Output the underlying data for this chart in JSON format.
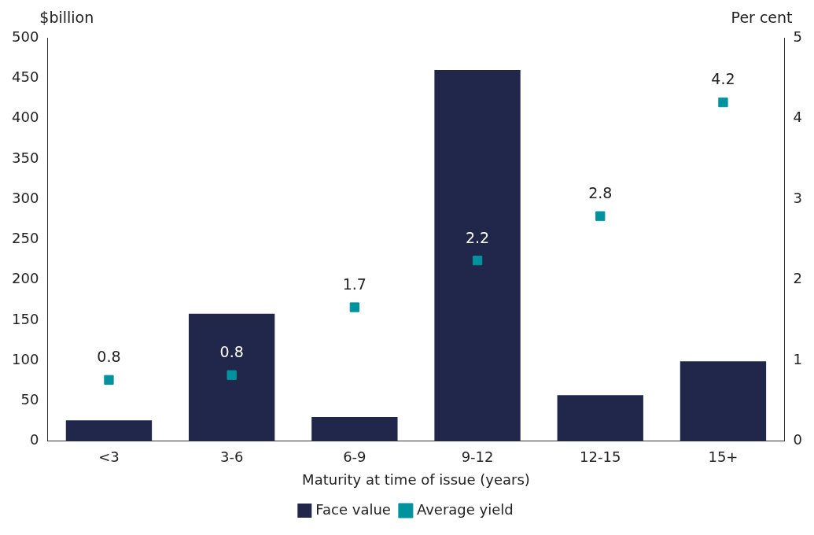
{
  "chart_data": {
    "type": "bar",
    "categories": [
      "<3",
      "3-6",
      "6-9",
      "9-12",
      "12-15",
      "15+"
    ],
    "series": [
      {
        "name": "Face value",
        "color": "#20274a",
        "values": [
          26,
          158,
          30,
          460,
          57,
          99
        ]
      },
      {
        "name": "Average yield",
        "type": "scatter",
        "axis": "y2",
        "color": "#00939e",
        "values": [
          0.76,
          0.82,
          1.66,
          2.24,
          2.79,
          4.2
        ],
        "value_labels": [
          "0.8",
          "0.8",
          "1.7",
          "2.2",
          "2.8",
          "4.2"
        ]
      }
    ],
    "xlabel": "Maturity at time of issue (years)",
    "ylabel": "$billion",
    "y2label": "Per cent",
    "ylim": [
      0,
      500
    ],
    "yticks": [
      0,
      50,
      100,
      150,
      200,
      250,
      300,
      350,
      400,
      450,
      500
    ],
    "y2lim": [
      0,
      5
    ],
    "y2ticks": [
      0,
      1,
      2,
      3,
      4,
      5
    ],
    "grid": false,
    "legend": "bottom",
    "marker": "square"
  }
}
